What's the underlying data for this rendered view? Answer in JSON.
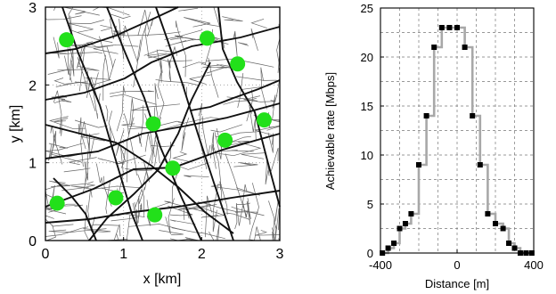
{
  "chart_data": [
    {
      "type": "scatter",
      "title": "",
      "xlabel": "x [km]",
      "ylabel": "y [km]",
      "xlim": [
        0,
        3
      ],
      "ylim": [
        0,
        3
      ],
      "xticks": [
        "0",
        "1",
        "2",
        "3"
      ],
      "yticks": [
        "0",
        "1",
        "2",
        "3"
      ],
      "grid": true,
      "background": "street map of a city",
      "marker_color": "#22e01a",
      "points": [
        {
          "x": 0.27,
          "y": 2.58
        },
        {
          "x": 2.07,
          "y": 2.6
        },
        {
          "x": 2.46,
          "y": 2.27
        },
        {
          "x": 1.38,
          "y": 1.5
        },
        {
          "x": 2.8,
          "y": 1.55
        },
        {
          "x": 2.3,
          "y": 1.29
        },
        {
          "x": 1.63,
          "y": 0.93
        },
        {
          "x": 0.9,
          "y": 0.55
        },
        {
          "x": 0.15,
          "y": 0.48
        },
        {
          "x": 1.4,
          "y": 0.33
        }
      ]
    },
    {
      "type": "line",
      "title": "",
      "xlabel": "Distance [m]",
      "ylabel": "Achievable rate [Mbps]",
      "xlim": [
        -400,
        400
      ],
      "ylim": [
        0,
        25
      ],
      "xticks": [
        "-400",
        "0",
        "400"
      ],
      "yticks": [
        "0",
        "5",
        "10",
        "15",
        "20",
        "25"
      ],
      "grid": true,
      "step": true,
      "line_color": "#a8a8a8",
      "marker_color": "#000000",
      "series": [
        {
          "x": [
            -390,
            -360,
            -330,
            -300,
            -270,
            -240,
            -200,
            -160,
            -120,
            -80,
            -40,
            0,
            40,
            80,
            120,
            160,
            200,
            240,
            270,
            300,
            330,
            360,
            390
          ],
          "values": [
            0,
            0.5,
            1,
            2.5,
            3,
            4,
            9,
            14,
            21,
            23,
            23,
            23,
            21,
            14,
            9,
            4,
            3,
            2.5,
            1,
            0.5,
            0,
            0,
            0
          ]
        }
      ]
    }
  ]
}
